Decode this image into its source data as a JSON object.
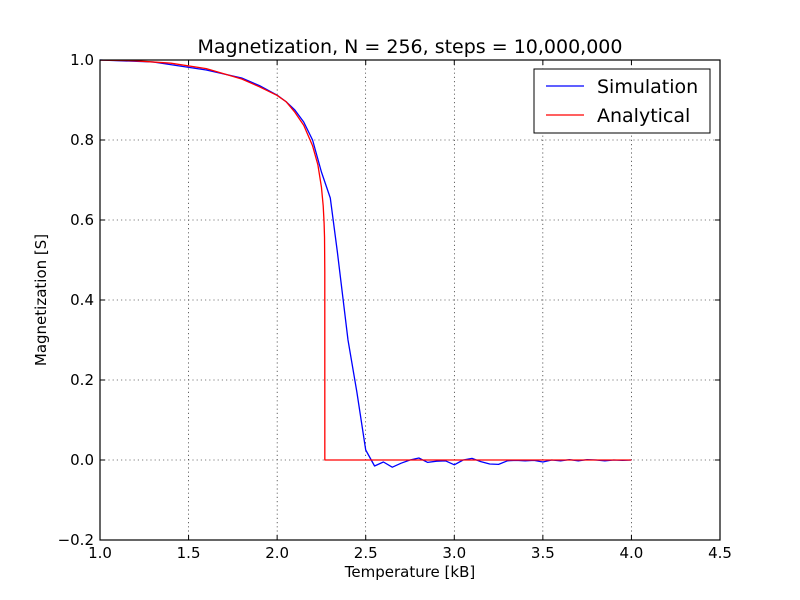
{
  "chart_data": {
    "type": "line",
    "title": "Magnetization, N = 256, steps = 10,000,000",
    "xlabel": "Temperature [kB]",
    "ylabel": "Magnetization [S]",
    "xlim": [
      1.0,
      4.5
    ],
    "ylim": [
      -0.2,
      1.0
    ],
    "x_ticks": [
      "1.0",
      "1.5",
      "2.0",
      "2.5",
      "3.0",
      "3.5",
      "4.0",
      "4.5"
    ],
    "y_ticks": [
      "−0.2",
      "0.0",
      "0.2",
      "0.4",
      "0.6",
      "0.8",
      "1.0"
    ],
    "grid": true,
    "legend_position": "top-right",
    "series": [
      {
        "name": "Simulation",
        "color": "#0000ff",
        "points": [
          [
            1.0,
            1.0
          ],
          [
            1.3,
            0.995
          ],
          [
            1.6,
            0.975
          ],
          [
            1.8,
            0.955
          ],
          [
            1.9,
            0.936
          ],
          [
            2.0,
            0.912
          ],
          [
            2.05,
            0.896
          ],
          [
            2.1,
            0.875
          ],
          [
            2.15,
            0.845
          ],
          [
            2.2,
            0.8
          ],
          [
            2.25,
            0.72
          ],
          [
            2.3,
            0.655
          ],
          [
            2.34,
            0.52
          ],
          [
            2.4,
            0.3
          ],
          [
            2.45,
            0.17
          ],
          [
            2.5,
            0.025
          ],
          [
            2.55,
            -0.015
          ],
          [
            2.6,
            -0.005
          ],
          [
            2.65,
            -0.018
          ],
          [
            2.7,
            -0.008
          ],
          [
            2.75,
            0.0
          ],
          [
            2.8,
            0.005
          ],
          [
            2.85,
            -0.006
          ],
          [
            2.9,
            -0.003
          ],
          [
            2.95,
            -0.002
          ],
          [
            3.0,
            -0.012
          ],
          [
            3.05,
            0.0
          ],
          [
            3.1,
            0.004
          ],
          [
            3.15,
            -0.004
          ],
          [
            3.2,
            -0.01
          ],
          [
            3.25,
            -0.011
          ],
          [
            3.3,
            -0.002
          ],
          [
            3.35,
            -0.001
          ],
          [
            3.4,
            -0.002
          ],
          [
            3.45,
            -0.001
          ],
          [
            3.5,
            -0.005
          ],
          [
            3.55,
            0.0
          ],
          [
            3.6,
            -0.002
          ],
          [
            3.65,
            0.001
          ],
          [
            3.7,
            -0.002
          ],
          [
            3.75,
            0.001
          ],
          [
            3.8,
            0.0
          ],
          [
            3.85,
            -0.002
          ],
          [
            3.9,
            0.0
          ],
          [
            3.95,
            -0.001
          ],
          [
            4.0,
            0.0
          ]
        ]
      },
      {
        "name": "Analytical",
        "color": "#ff0000",
        "points": [
          [
            1.0,
            0.9997
          ],
          [
            1.2,
            0.998
          ],
          [
            1.4,
            0.992
          ],
          [
            1.6,
            0.9785
          ],
          [
            1.8,
            0.9525
          ],
          [
            1.9,
            0.933
          ],
          [
            2.0,
            0.9114
          ],
          [
            2.05,
            0.896
          ],
          [
            2.1,
            0.8695
          ],
          [
            2.15,
            0.837
          ],
          [
            2.2,
            0.7855
          ],
          [
            2.23,
            0.7378
          ],
          [
            2.25,
            0.6822
          ],
          [
            2.26,
            0.6355
          ],
          [
            2.265,
            0.5926
          ],
          [
            2.2675,
            0.5567
          ],
          [
            2.269,
            0.47
          ],
          [
            2.2692,
            0.0
          ],
          [
            2.3,
            0.0
          ],
          [
            4.0,
            0.0
          ]
        ]
      }
    ]
  }
}
